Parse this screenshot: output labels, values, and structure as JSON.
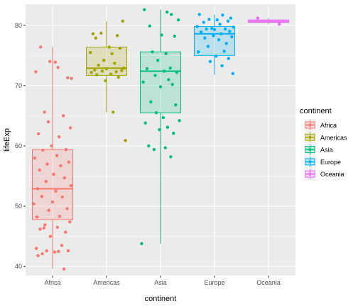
{
  "chart_data": {
    "type": "boxplot",
    "xlabel": "continent",
    "ylabel": "lifeExp",
    "ylim": [
      38.5,
      83.5
    ],
    "yticks": [
      40,
      50,
      60,
      70,
      80
    ],
    "grid": true,
    "legend": {
      "title": "continent",
      "placement": "right"
    },
    "categories": [
      "Africa",
      "Americas",
      "Asia",
      "Europe",
      "Oceania"
    ],
    "colors": [
      "#F8766D",
      "#A3A500",
      "#00BF7D",
      "#00B0F6",
      "#E76BF3"
    ],
    "boxes": [
      {
        "name": "Africa",
        "min": 39.6,
        "q1": 47.8,
        "median": 52.9,
        "q3": 59.4,
        "max": 76.4
      },
      {
        "name": "Americas",
        "min": 65.6,
        "q1": 71.7,
        "median": 72.9,
        "q3": 76.4,
        "max": 80.7
      },
      {
        "name": "Asia",
        "min": 43.8,
        "q1": 65.5,
        "median": 72.4,
        "q3": 75.6,
        "max": 82.6
      },
      {
        "name": "Europe",
        "min": 71.8,
        "q1": 75.0,
        "median": 78.6,
        "q3": 79.8,
        "max": 81.8
      },
      {
        "name": "Oceania",
        "min": 80.2,
        "q1": 80.5,
        "median": 80.7,
        "q3": 80.9,
        "max": 81.2
      }
    ],
    "points": [
      {
        "name": "Africa",
        "jitter": [
          -0.22,
          0.35,
          -0.05,
          0.1,
          -0.31,
          0.28,
          0.05,
          -0.15,
          0.2,
          -0.08,
          0.33,
          -0.26,
          0.12,
          -0.02,
          0.25,
          -0.18,
          0.08,
          -0.33,
          0.3,
          -0.1,
          0.15,
          -0.24,
          0.02,
          0.22,
          -0.12,
          0.34,
          -0.28,
          0.06,
          -0.2,
          0.18,
          0.0,
          -0.35,
          0.27,
          -0.07,
          0.13,
          -0.29,
          0.32,
          -0.14,
          0.09,
          -0.23,
          0.24,
          -0.04,
          0.17,
          -0.3,
          0.29,
          -0.11,
          0.04,
          -0.19,
          0.21,
          -0.27,
          0.11,
          -0.16
        ],
        "values": [
          76.4,
          71.2,
          74.0,
          73.0,
          72.3,
          71.3,
          73.9,
          65.6,
          65.0,
          64.0,
          63.0,
          62.0,
          61.5,
          60.0,
          59.4,
          59.3,
          58.4,
          58.0,
          57.3,
          57.0,
          56.7,
          56.0,
          55.3,
          54.7,
          54.1,
          53.4,
          52.9,
          52.5,
          51.6,
          51.5,
          50.7,
          50.4,
          49.6,
          49.3,
          48.3,
          48.2,
          47.4,
          46.9,
          46.5,
          46.2,
          45.7,
          45.0,
          43.5,
          43.0,
          42.6,
          42.6,
          42.4,
          42.1,
          39.6,
          41.8,
          42.5,
          46.4
        ]
      },
      {
        "name": "Americas",
        "jitter": [
          -0.25,
          0.2,
          -0.1,
          0.3,
          -0.2,
          0.05,
          0.25,
          -0.3,
          0.1,
          -0.05,
          0.15,
          -0.15,
          0.32,
          0.0,
          -0.22,
          0.28,
          -0.08,
          0.18,
          -0.28,
          0.08,
          -0.18,
          0.22,
          -0.02,
          0.12,
          0.35
        ],
        "values": [
          78.6,
          78.3,
          78.7,
          80.7,
          77.9,
          76.4,
          76.2,
          75.5,
          75.3,
          74.2,
          73.7,
          73.4,
          72.9,
          72.8,
          72.6,
          72.5,
          72.4,
          72.3,
          72.2,
          71.9,
          71.8,
          71.4,
          70.8,
          65.6,
          60.9
        ]
      },
      {
        "name": "Asia",
        "jitter": [
          -0.3,
          0.12,
          0.2,
          0.33,
          -0.2,
          0.02,
          0.26,
          -0.15,
          0.1,
          -0.05,
          0.18,
          -0.25,
          0.07,
          0.3,
          -0.1,
          0.15,
          -0.32,
          0.22,
          0.0,
          -0.18,
          0.28,
          -0.08,
          0.05,
          0.35,
          -0.28,
          0.13,
          -0.02,
          0.24,
          -0.22,
          0.09,
          -0.12,
          0.19,
          -0.35
        ],
        "values": [
          82.6,
          82.2,
          81.8,
          80.9,
          79.9,
          78.4,
          78.2,
          75.6,
          75.3,
          74.2,
          72.9,
          72.8,
          72.4,
          72.2,
          71.7,
          71.0,
          70.6,
          70.2,
          69.8,
          67.3,
          66.8,
          65.5,
          64.7,
          64.2,
          63.8,
          63.1,
          62.7,
          62.1,
          60.0,
          59.7,
          59.4,
          58.2,
          43.8
        ]
      },
      {
        "name": "Europe",
        "jitter": [
          -0.28,
          0.15,
          0.3,
          -0.1,
          0.05,
          0.25,
          -0.2,
          0.1,
          -0.32,
          0.35,
          -0.05,
          0.2,
          -0.15,
          0.0,
          0.28,
          -0.25,
          0.12,
          -0.02,
          0.32,
          -0.18,
          0.08,
          0.22,
          -0.12,
          0.18,
          -0.3,
          0.03,
          0.26,
          -0.08,
          0.14,
          0.34
        ],
        "values": [
          81.8,
          81.7,
          81.2,
          81.0,
          80.9,
          80.7,
          80.5,
          80.2,
          79.8,
          79.7,
          79.5,
          79.4,
          79.4,
          79.3,
          79.0,
          78.9,
          78.6,
          78.3,
          78.1,
          77.9,
          77.6,
          77.0,
          76.5,
          75.7,
          75.6,
          74.9,
          74.5,
          74.0,
          73.3,
          72.0
        ]
      },
      {
        "name": "Oceania",
        "jitter": [
          -0.2,
          0.2
        ],
        "values": [
          81.2,
          80.2
        ]
      }
    ]
  }
}
